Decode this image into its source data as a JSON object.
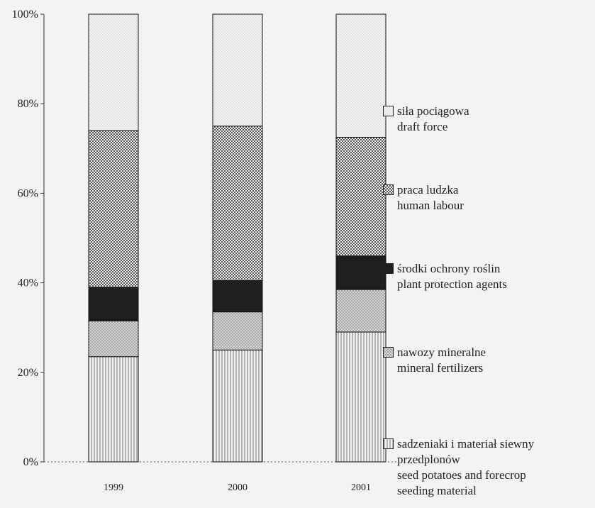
{
  "chart_data": {
    "type": "stacked-bar-percent",
    "categories": [
      "1999",
      "2000",
      "2001"
    ],
    "series": [
      {
        "name": "sadzeniaki i materiał siewny\nprzedplonów\nseed potatoes and forecrop\nseeding material",
        "color": "#b4b4b4",
        "pattern": "vertical",
        "values": [
          23.5,
          25,
          29
        ]
      },
      {
        "name": "nawozy mineralne\nmineral fertilizers",
        "color": "#a6a6a6",
        "pattern": "crosshatch",
        "values": [
          8,
          8.5,
          9.5
        ]
      },
      {
        "name": "środki ochrony roślin\nplant protection agents",
        "color": "#1e1e1e",
        "pattern": "solid",
        "values": [
          7.5,
          7,
          7.5
        ]
      },
      {
        "name": "praca ludzka\nhuman labour",
        "color": "#555555",
        "pattern": "dots",
        "values": [
          35,
          34.5,
          26.5
        ]
      },
      {
        "name": "siła pociągowa\ndraft force",
        "color": "#d6d6d6",
        "pattern": "fine-dots",
        "values": [
          26,
          25,
          27.5
        ]
      }
    ],
    "ylim": [
      0,
      100
    ],
    "yticks": [
      {
        "value": 0,
        "label": "0%"
      },
      {
        "value": 20,
        "label": "20%"
      },
      {
        "value": 40,
        "label": "40%"
      },
      {
        "value": 60,
        "label": "60%"
      },
      {
        "value": 80,
        "label": "80%"
      },
      {
        "value": 100,
        "label": "100%"
      }
    ]
  }
}
